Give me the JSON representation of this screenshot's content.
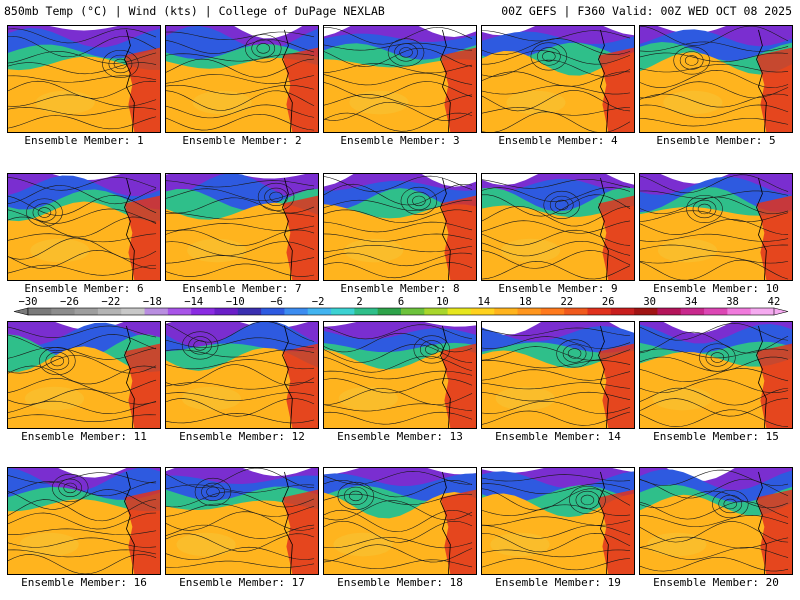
{
  "header": {
    "left": "850mb Temp (°C) | Wind (kts) | College of DuPage NEXLAB",
    "right": "00Z GEFS | F360 Valid: 00Z WED OCT 08 2025"
  },
  "caption_prefix": "Ensemble Member:",
  "members": [
    {
      "label": "Ensemble Member: 1",
      "number": 1
    },
    {
      "label": "Ensemble Member: 2",
      "number": 2
    },
    {
      "label": "Ensemble Member: 3",
      "number": 3
    },
    {
      "label": "Ensemble Member: 4",
      "number": 4
    },
    {
      "label": "Ensemble Member: 5",
      "number": 5
    },
    {
      "label": "Ensemble Member: 6",
      "number": 6
    },
    {
      "label": "Ensemble Member: 7",
      "number": 7
    },
    {
      "label": "Ensemble Member: 8",
      "number": 8
    },
    {
      "label": "Ensemble Member: 9",
      "number": 9
    },
    {
      "label": "Ensemble Member: 10",
      "number": 10
    },
    {
      "label": "Ensemble Member: 11",
      "number": 11
    },
    {
      "label": "Ensemble Member: 12",
      "number": 12
    },
    {
      "label": "Ensemble Member: 13",
      "number": 13
    },
    {
      "label": "Ensemble Member: 14",
      "number": 14
    },
    {
      "label": "Ensemble Member: 15",
      "number": 15
    },
    {
      "label": "Ensemble Member: 16",
      "number": 16
    },
    {
      "label": "Ensemble Member: 17",
      "number": 17
    },
    {
      "label": "Ensemble Member: 18",
      "number": 18
    },
    {
      "label": "Ensemble Member: 19",
      "number": 19
    },
    {
      "label": "Ensemble Member: 20",
      "number": 20
    }
  ],
  "colorbar": {
    "ticks": [
      "−30",
      "−26",
      "−22",
      "−18",
      "−14",
      "−10",
      "−6",
      "−2",
      "2",
      "6",
      "10",
      "14",
      "18",
      "22",
      "26",
      "30",
      "34",
      "38",
      "42"
    ],
    "colors": [
      "#7a7a7a",
      "#8c8c8c",
      "#9e9e9e",
      "#b4b4b4",
      "#c8c8c8",
      "#b98ee0",
      "#a855e8",
      "#8a2be2",
      "#6a1fc8",
      "#3a2fb0",
      "#2e5ae0",
      "#3c8cf0",
      "#42b4f0",
      "#3cd2d2",
      "#2fbf8a",
      "#2ea34a",
      "#6cc23c",
      "#a8d62c",
      "#e6e61e",
      "#ffd21e",
      "#ffb41e",
      "#ff961e",
      "#ff7a1e",
      "#f05a1e",
      "#e0321e",
      "#c81e1e",
      "#a01414",
      "#b4145a",
      "#c8288c",
      "#dc46b4",
      "#f07adc",
      "#f5aaf0"
    ]
  },
  "map_palette": {
    "cold": "#7a2ed0",
    "cool": "#2e5ae0",
    "mid": "#2fbf8a",
    "warm": "#ffb41e",
    "hot": "#e0321e",
    "land": "#f0a020",
    "ocean_warm": "#f8c030"
  }
}
